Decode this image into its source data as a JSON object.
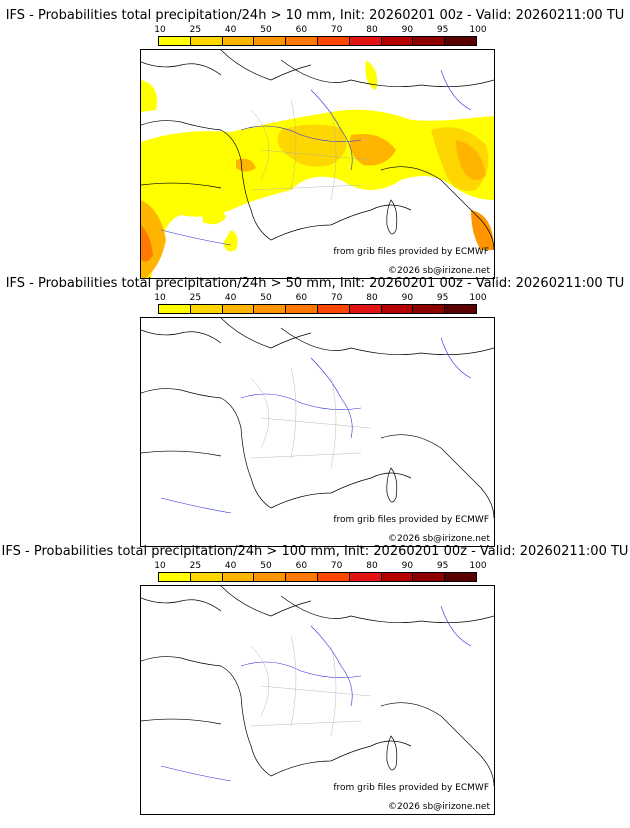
{
  "legend": {
    "ticks": [
      "10",
      "25",
      "40",
      "50",
      "60",
      "70",
      "80",
      "90",
      "95",
      "100"
    ],
    "colors": [
      "#ffff00",
      "#ffd700",
      "#ffb400",
      "#ff9600",
      "#ff7800",
      "#ff4600",
      "#e11414",
      "#b40000",
      "#8c0000",
      "#5a0000"
    ]
  },
  "panels": [
    {
      "title": "IFS - Probabilities total precipitation/24h > 10 mm, Init: 20260201 00z - Valid: 20260211:00 TU",
      "source": "from grib files provided by ECMWF",
      "copyright": "©2026 sb@irizone.net"
    },
    {
      "title": "IFS - Probabilities total precipitation/24h > 50 mm, Init: 20260201 00z - Valid: 20260211:00 TU",
      "source": "from grib files provided by ECMWF",
      "copyright": "©2026 sb@irizone.net"
    },
    {
      "title": "IFS - Probabilities total precipitation/24h > 100 mm, Init: 20260201 00z - Valid: 20260211:00 TU",
      "source": "from grib files provided by ECMWF",
      "copyright": "©2026 sb@irizone.net"
    }
  ]
}
